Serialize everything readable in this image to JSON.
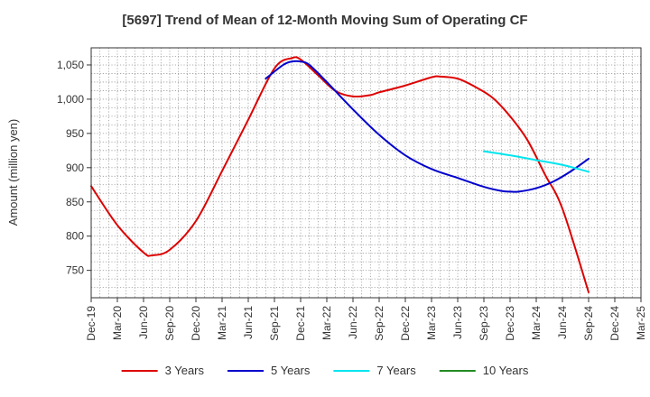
{
  "chart_data": {
    "type": "line",
    "title": "[5697]  Trend of Mean of 12-Month Moving Sum of Operating CF",
    "xlabel": "",
    "ylabel": "Amount (million yen)",
    "ylim": [
      710,
      1075
    ],
    "yticks": [
      750,
      800,
      850,
      900,
      950,
      1000,
      1050
    ],
    "ytick_labels": [
      "750",
      "800",
      "850",
      "900",
      "950",
      "1,000",
      "1,050"
    ],
    "x_range": [
      0,
      63
    ],
    "xticks": [
      0,
      3,
      6,
      9,
      12,
      15,
      18,
      21,
      24,
      27,
      30,
      33,
      36,
      39,
      42,
      45,
      48,
      51,
      54,
      57,
      60,
      63
    ],
    "xtick_labels": [
      "Dec-19",
      "Mar-20",
      "Jun-20",
      "Sep-20",
      "Dec-20",
      "Mar-21",
      "Jun-21",
      "Sep-21",
      "Dec-21",
      "Mar-22",
      "Jun-22",
      "Sep-22",
      "Dec-22",
      "Mar-23",
      "Jun-23",
      "Sep-23",
      "Dec-23",
      "Mar-24",
      "Jun-24",
      "Sep-24",
      "Dec-24",
      "Mar-25"
    ],
    "grid": true,
    "legend_position": "bottom",
    "series": [
      {
        "name": "3 Years",
        "color": "#dd0000",
        "x": [
          0,
          3,
          6,
          7,
          9,
          12,
          15,
          18,
          21,
          23,
          24,
          26,
          28,
          30,
          32,
          33,
          36,
          39,
          40,
          42,
          44,
          46,
          48,
          50,
          52,
          54,
          57
        ],
        "y": [
          873,
          816,
          776,
          772,
          780,
          822,
          895,
          970,
          1045,
          1060,
          1058,
          1035,
          1012,
          1004,
          1006,
          1010,
          1020,
          1032,
          1033,
          1030,
          1018,
          1002,
          975,
          940,
          890,
          840,
          718
        ]
      },
      {
        "name": "5 Years",
        "color": "#0000cc",
        "x": [
          20,
          22,
          23,
          24,
          25,
          27,
          30,
          33,
          36,
          39,
          42,
          45,
          47,
          48,
          49,
          51,
          53,
          55,
          57
        ],
        "y": [
          1030,
          1050,
          1055,
          1055,
          1050,
          1025,
          985,
          948,
          918,
          898,
          885,
          872,
          866,
          865,
          865,
          870,
          880,
          895,
          913
        ]
      },
      {
        "name": "7 Years",
        "color": "#00e5ee",
        "x": [
          45,
          48,
          51,
          54,
          57
        ],
        "y": [
          924,
          918,
          911,
          904,
          894
        ]
      },
      {
        "name": "10 Years",
        "color": "#228b22",
        "x": [],
        "y": []
      }
    ]
  }
}
